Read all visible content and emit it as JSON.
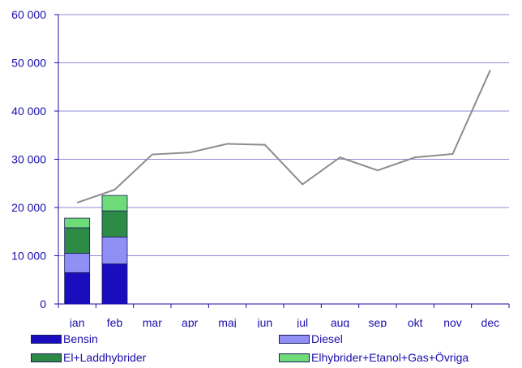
{
  "chart_data": {
    "type": "bar",
    "title": "",
    "xlabel": "",
    "ylabel": "",
    "ylim": [
      0,
      60000
    ],
    "yticks": [
      0,
      10000,
      20000,
      30000,
      40000,
      50000,
      60000
    ],
    "ytick_labels": [
      "0",
      "10 000",
      "20 000",
      "30 000",
      "40 000",
      "50 000",
      "60 000"
    ],
    "categories": [
      "jan",
      "feb",
      "mar",
      "apr",
      "maj",
      "jun",
      "jul",
      "aug",
      "sep",
      "okt",
      "nov",
      "dec"
    ],
    "stacked": true,
    "grid": true,
    "legend_position": "bottom",
    "series": [
      {
        "name": "Bensin",
        "kind": "bar",
        "color": "#1a0dbe",
        "values": [
          6500,
          8300,
          null,
          null,
          null,
          null,
          null,
          null,
          null,
          null,
          null,
          null
        ]
      },
      {
        "name": "Diesel",
        "kind": "bar",
        "color": "#8f8ff5",
        "values": [
          4000,
          5600,
          null,
          null,
          null,
          null,
          null,
          null,
          null,
          null,
          null,
          null
        ]
      },
      {
        "name": "El+Laddhybrider",
        "kind": "bar",
        "color": "#2e8b46",
        "values": [
          5300,
          5400,
          null,
          null,
          null,
          null,
          null,
          null,
          null,
          null,
          null,
          null
        ]
      },
      {
        "name": "Elhybrider+Etanol+Gas+Övriga",
        "kind": "bar",
        "color": "#6fdc7a",
        "values": [
          2000,
          3200,
          null,
          null,
          null,
          null,
          null,
          null,
          null,
          null,
          null,
          null
        ]
      },
      {
        "kind": "line",
        "color": "#8c8c8c",
        "values": [
          21000,
          23700,
          31000,
          31400,
          33200,
          33000,
          24800,
          30400,
          27700,
          30400,
          31100,
          48500
        ]
      }
    ]
  },
  "legend": {
    "items": [
      {
        "label": "Bensin",
        "color": "#1a0dbe"
      },
      {
        "label": "Diesel",
        "color": "#8f8ff5"
      },
      {
        "label": "El+Laddhybrider",
        "color": "#2e8b46"
      },
      {
        "label": "Elhybrider+Etanol+Gas+Övriga",
        "color": "#6fdc7a"
      }
    ]
  }
}
